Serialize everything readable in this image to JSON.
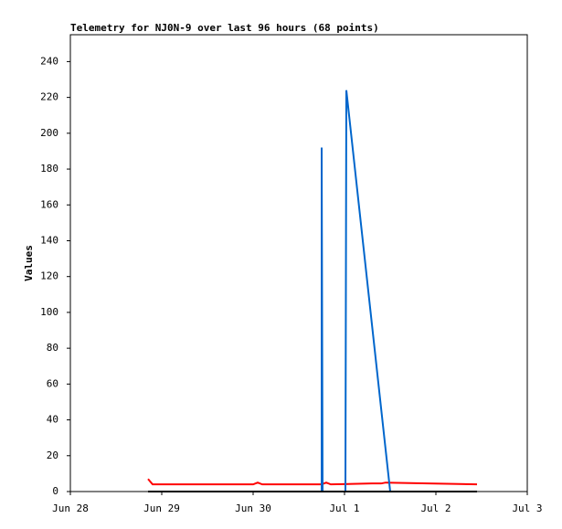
{
  "chart_data": {
    "type": "line",
    "title": "Telemetry for NJ0N-9 over last 96 hours (68 points)",
    "y_label": "Values",
    "xlim": [
      0,
      5
    ],
    "xticks": [
      {
        "value": 0,
        "label": "Jun 28"
      },
      {
        "value": 1,
        "label": "Jun 29"
      },
      {
        "value": 2,
        "label": "Jun 30"
      },
      {
        "value": 3,
        "label": "Jul 1"
      },
      {
        "value": 4,
        "label": "Jul 2"
      },
      {
        "value": 5,
        "label": "Jul 3"
      }
    ],
    "ylim": [
      0,
      255
    ],
    "yticks": [
      0,
      20,
      40,
      60,
      80,
      100,
      120,
      140,
      160,
      180,
      200,
      220,
      240
    ],
    "grid": false,
    "series": [
      {
        "color": "#000000",
        "x": [
          0.85,
          4.45
        ],
        "values": [
          0,
          0
        ]
      },
      {
        "color": "#ff0000",
        "x": [
          0.85,
          0.9,
          2.0,
          2.05,
          2.1,
          2.75,
          2.8,
          2.85,
          3.3,
          3.4,
          3.45,
          4.45
        ],
        "values": [
          7,
          4,
          4,
          5,
          4,
          4,
          5,
          4,
          4.5,
          4.5,
          5,
          4
        ]
      },
      {
        "color": "#0066cc",
        "x": [
          2.75,
          2.75,
          2.76,
          3.01,
          3.02,
          3.5
        ],
        "values": [
          0,
          192,
          0,
          0,
          224,
          0
        ]
      }
    ]
  }
}
